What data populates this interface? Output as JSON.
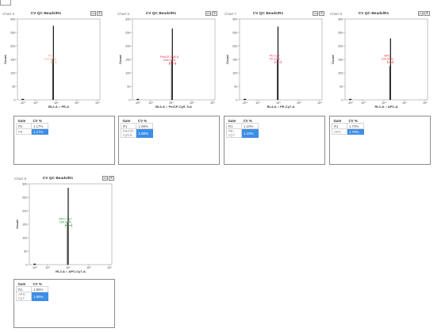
{
  "grid_header": {
    "gate": "Gate",
    "cv": "CV %"
  },
  "charts": [
    {
      "label": "Chart 3",
      "title": "CV QC Beads/R1",
      "xlabel": "BL2-A :: PE-A",
      "gate_name": "PE",
      "gate_pct": "100.00%",
      "gate_color": "#f0a070",
      "rows": [
        {
          "gate": "R1",
          "cv": "1.17%"
        },
        {
          "gate": "PE",
          "cv": "1.17%"
        }
      ]
    },
    {
      "label": "Chart 6",
      "title": "CV QC Beads/R1",
      "xlabel": "BL3-A :: PerCP-Cy5_5-A",
      "gate_name": "PerCP-Cy5.5",
      "gate_pct": "100.00%",
      "gate_color": "#e8283c",
      "rows": [
        {
          "gate": "R1",
          "cv": "1.88%"
        },
        {
          "gate": "PerCP-Cy5.5",
          "cv": "1.88%"
        }
      ]
    },
    {
      "label": "Chart 7",
      "title": "CV QC Beads/R1",
      "xlabel": "BL4-A :: PE-Cy7-A",
      "gate_name": "PE-Cy7",
      "gate_pct": "99.92%",
      "gate_color": "#e84080",
      "rows": [
        {
          "gate": "R1",
          "cv": "1.10%"
        },
        {
          "gate": "PE-Cy7",
          "cv": "1.10%"
        }
      ]
    },
    {
      "label": "Chart 9",
      "title": "CV QC Beads/R1",
      "xlabel": "RL1-A :: APC-A",
      "gate_name": "APC",
      "gate_pct": "100.00%",
      "gate_color": "#e83838",
      "rows": [
        {
          "gate": "R1",
          "cv": "1.70%"
        },
        {
          "gate": "APC",
          "cv": "1.70%"
        }
      ]
    },
    {
      "label": "Chart 8",
      "title": "CV QC Beads/R1",
      "xlabel": "RL2-A :: APC-Cy7-A",
      "gate_name": "APC-Cy7",
      "gate_pct": "100.00%",
      "gate_color": "#2e8b3a",
      "rows": [
        {
          "gate": "R1",
          "cv": "1.86%"
        },
        {
          "gate": "APC-Cy7",
          "cv": "1.86%"
        }
      ]
    }
  ],
  "chart_data": [
    {
      "type": "histogram",
      "title": "CV QC Beads/R1",
      "xlabel": "BL2-A :: PE-A",
      "ylabel": "Count",
      "ylim": [
        0,
        300
      ],
      "yticks": [
        0,
        50,
        100,
        150,
        200,
        250,
        300
      ],
      "xticks": [
        "-10³",
        "10³",
        "10⁴",
        "10⁵",
        "10⁶"
      ],
      "peak_at_decade": 3.86,
      "peak_height": 275,
      "gate_range_decades": [
        3.74,
        3.98
      ],
      "gate_level": 140
    },
    {
      "type": "histogram",
      "title": "CV QC Beads/R1",
      "xlabel": "BL3-A :: PerCP-Cy5_5-A",
      "ylabel": "Count",
      "ylim": [
        0,
        300
      ],
      "yticks": [
        0,
        50,
        100,
        150,
        200,
        250,
        300
      ],
      "xticks": [
        "-10³",
        "10³",
        "10⁴",
        "10⁵",
        "10⁶"
      ],
      "peak_at_decade": 4.05,
      "peak_height": 265,
      "gate_range_decades": [
        3.9,
        4.22
      ],
      "gate_level": 135
    },
    {
      "type": "histogram",
      "title": "CV QC Beads/R1",
      "xlabel": "BL4-A :: PE-Cy7-A",
      "ylabel": "Count",
      "ylim": [
        0,
        300
      ],
      "yticks": [
        0,
        50,
        100,
        150,
        200,
        250,
        300
      ],
      "xticks": [
        "-10³",
        "10³",
        "10⁴",
        "10⁵",
        "10⁶"
      ],
      "peak_at_decade": 3.98,
      "peak_height": 272,
      "gate_range_decades": [
        3.82,
        4.13
      ],
      "gate_level": 140
    },
    {
      "type": "histogram",
      "title": "CV QC Beads/R1",
      "xlabel": "RL1-A :: APC-A",
      "ylabel": "Count",
      "ylim": [
        0,
        300
      ],
      "yticks": [
        0,
        50,
        100,
        150,
        200,
        250,
        300
      ],
      "xticks": [
        "-10³",
        "10³",
        "10⁴",
        "10⁵",
        "10⁶"
      ],
      "peak_at_decade": 4.32,
      "peak_height": 228,
      "gate_range_decades": [
        4.18,
        4.46
      ],
      "gate_level": 140
    },
    {
      "type": "histogram",
      "title": "CV QC Beads/R1",
      "xlabel": "RL2-A :: APC-Cy7-A",
      "ylabel": "Count",
      "ylim": [
        0,
        300
      ],
      "yticks": [
        0,
        50,
        100,
        150,
        200,
        250,
        300
      ],
      "xticks": [
        "-10³",
        "10³",
        "10⁴",
        "10⁵",
        "10⁶"
      ],
      "peak_at_decade": 4.0,
      "peak_height": 285,
      "gate_range_decades": [
        3.86,
        4.18
      ],
      "gate_level": 145
    }
  ],
  "icons": {
    "button1": "restore-icon",
    "button2": "close-icon"
  }
}
